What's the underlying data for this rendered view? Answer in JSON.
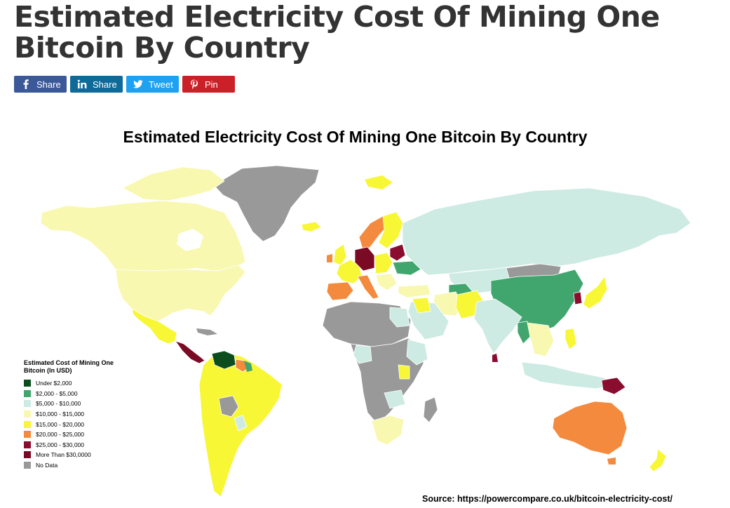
{
  "page": {
    "title": "Estimated Electricity Cost Of Mining One Bitcoin By Country"
  },
  "share_buttons": [
    {
      "label": "Share",
      "icon": "facebook-icon",
      "color": "#3b5998"
    },
    {
      "label": "Share",
      "icon": "linkedin-icon",
      "color": "#0e6a99"
    },
    {
      "label": "Tweet",
      "icon": "twitter-icon",
      "color": "#1da1f2"
    },
    {
      "label": "Pin",
      "icon": "pinterest-icon",
      "color": "#cb2027"
    }
  ],
  "map": {
    "title": "Estimated Electricity Cost Of Mining One Bitcoin By Country",
    "source": "Source: https://powercompare.co.uk/bitcoin-electricity-cost/",
    "legend": {
      "title": "Estimated Cost of Mining One Bitcoin (In USD)",
      "items": [
        {
          "label": "Under $2,000",
          "color": "#0b4d1f"
        },
        {
          "label": "$2,000 - $5,000",
          "color": "#41a66e"
        },
        {
          "label": "$5,000 - $10,000",
          "color": "#cdebe3"
        },
        {
          "label": "$10,000 - $15,000",
          "color": "#f8f8b0"
        },
        {
          "label": "$15,000 - $20,000",
          "color": "#f7f735"
        },
        {
          "label": "$20,000 - $25,000",
          "color": "#f48a3e"
        },
        {
          "label": "$25,000 - $30,000",
          "color": "#8a0c2e"
        },
        {
          "label": "More Than $30,0000",
          "color": "#7b0a24"
        },
        {
          "label": "No Data",
          "color": "#999999"
        }
      ]
    }
  }
}
